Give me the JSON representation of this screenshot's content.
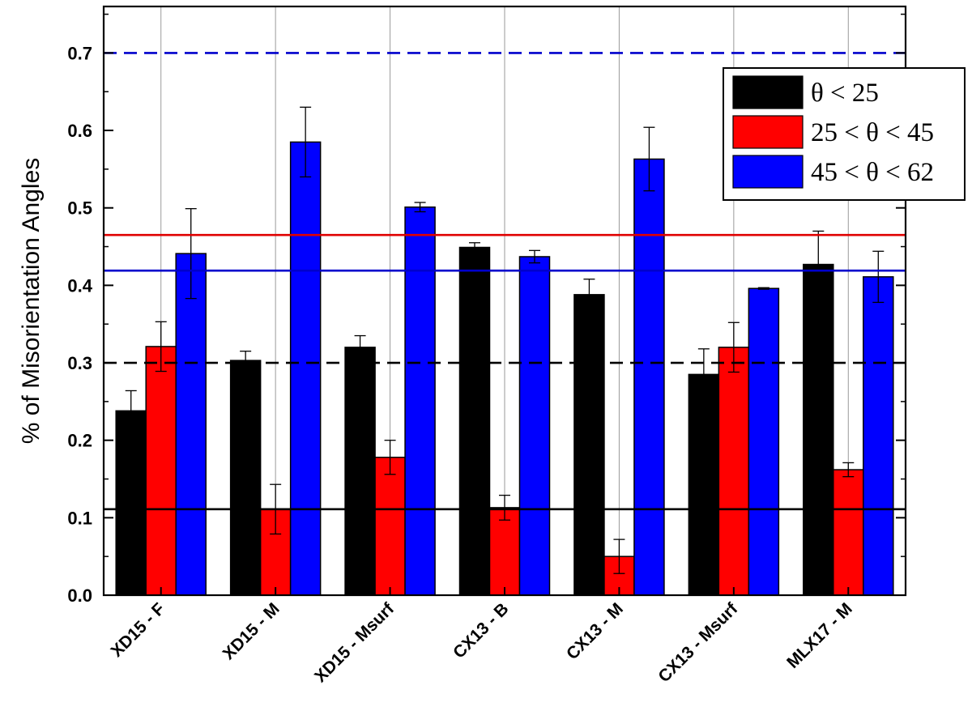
{
  "chart_data": {
    "type": "bar",
    "ylabel": "% of Misorientation Angles",
    "xlabel": "",
    "ylim": [
      0.0,
      0.76
    ],
    "yticks": [
      "0.0",
      "0.1",
      "0.2",
      "0.3",
      "0.4",
      "0.5",
      "0.6",
      "0.7"
    ],
    "categories": [
      "XD15 - F",
      "XD15 - M",
      "XD15 - Msurf",
      "CX13 - B",
      "CX13 - M",
      "CX13 - Msurf",
      "MLX17 - M"
    ],
    "series": [
      {
        "name": "θ < 25",
        "color": "#000000",
        "values": [
          0.238,
          0.303,
          0.32,
          0.449,
          0.388,
          0.285,
          0.427
        ],
        "errors": [
          0.026,
          0.012,
          0.015,
          0.006,
          0.02,
          0.033,
          0.043
        ]
      },
      {
        "name": "25 < θ < 45",
        "color": "#ff0000",
        "values": [
          0.321,
          0.111,
          0.178,
          0.113,
          0.05,
          0.32,
          0.162
        ],
        "errors": [
          0.032,
          0.032,
          0.022,
          0.016,
          0.022,
          0.032,
          0.009
        ]
      },
      {
        "name": "45 < θ < 62",
        "color": "#0000ff",
        "values": [
          0.441,
          0.585,
          0.501,
          0.437,
          0.563,
          0.396,
          0.411
        ],
        "errors": [
          0.058,
          0.045,
          0.006,
          0.008,
          0.041,
          0.001,
          0.033
        ]
      }
    ],
    "reference_lines": [
      {
        "value": 0.7,
        "color": "#0000cc",
        "style": "dashed"
      },
      {
        "value": 0.465,
        "color": "#e00000",
        "style": "solid"
      },
      {
        "value": 0.419,
        "color": "#0000cc",
        "style": "solid"
      },
      {
        "value": 0.3,
        "color": "#000000",
        "style": "dashed"
      },
      {
        "value": 0.111,
        "color": "#000000",
        "style": "solid"
      }
    ],
    "legend_position": "top-right",
    "grid": "vertical"
  }
}
